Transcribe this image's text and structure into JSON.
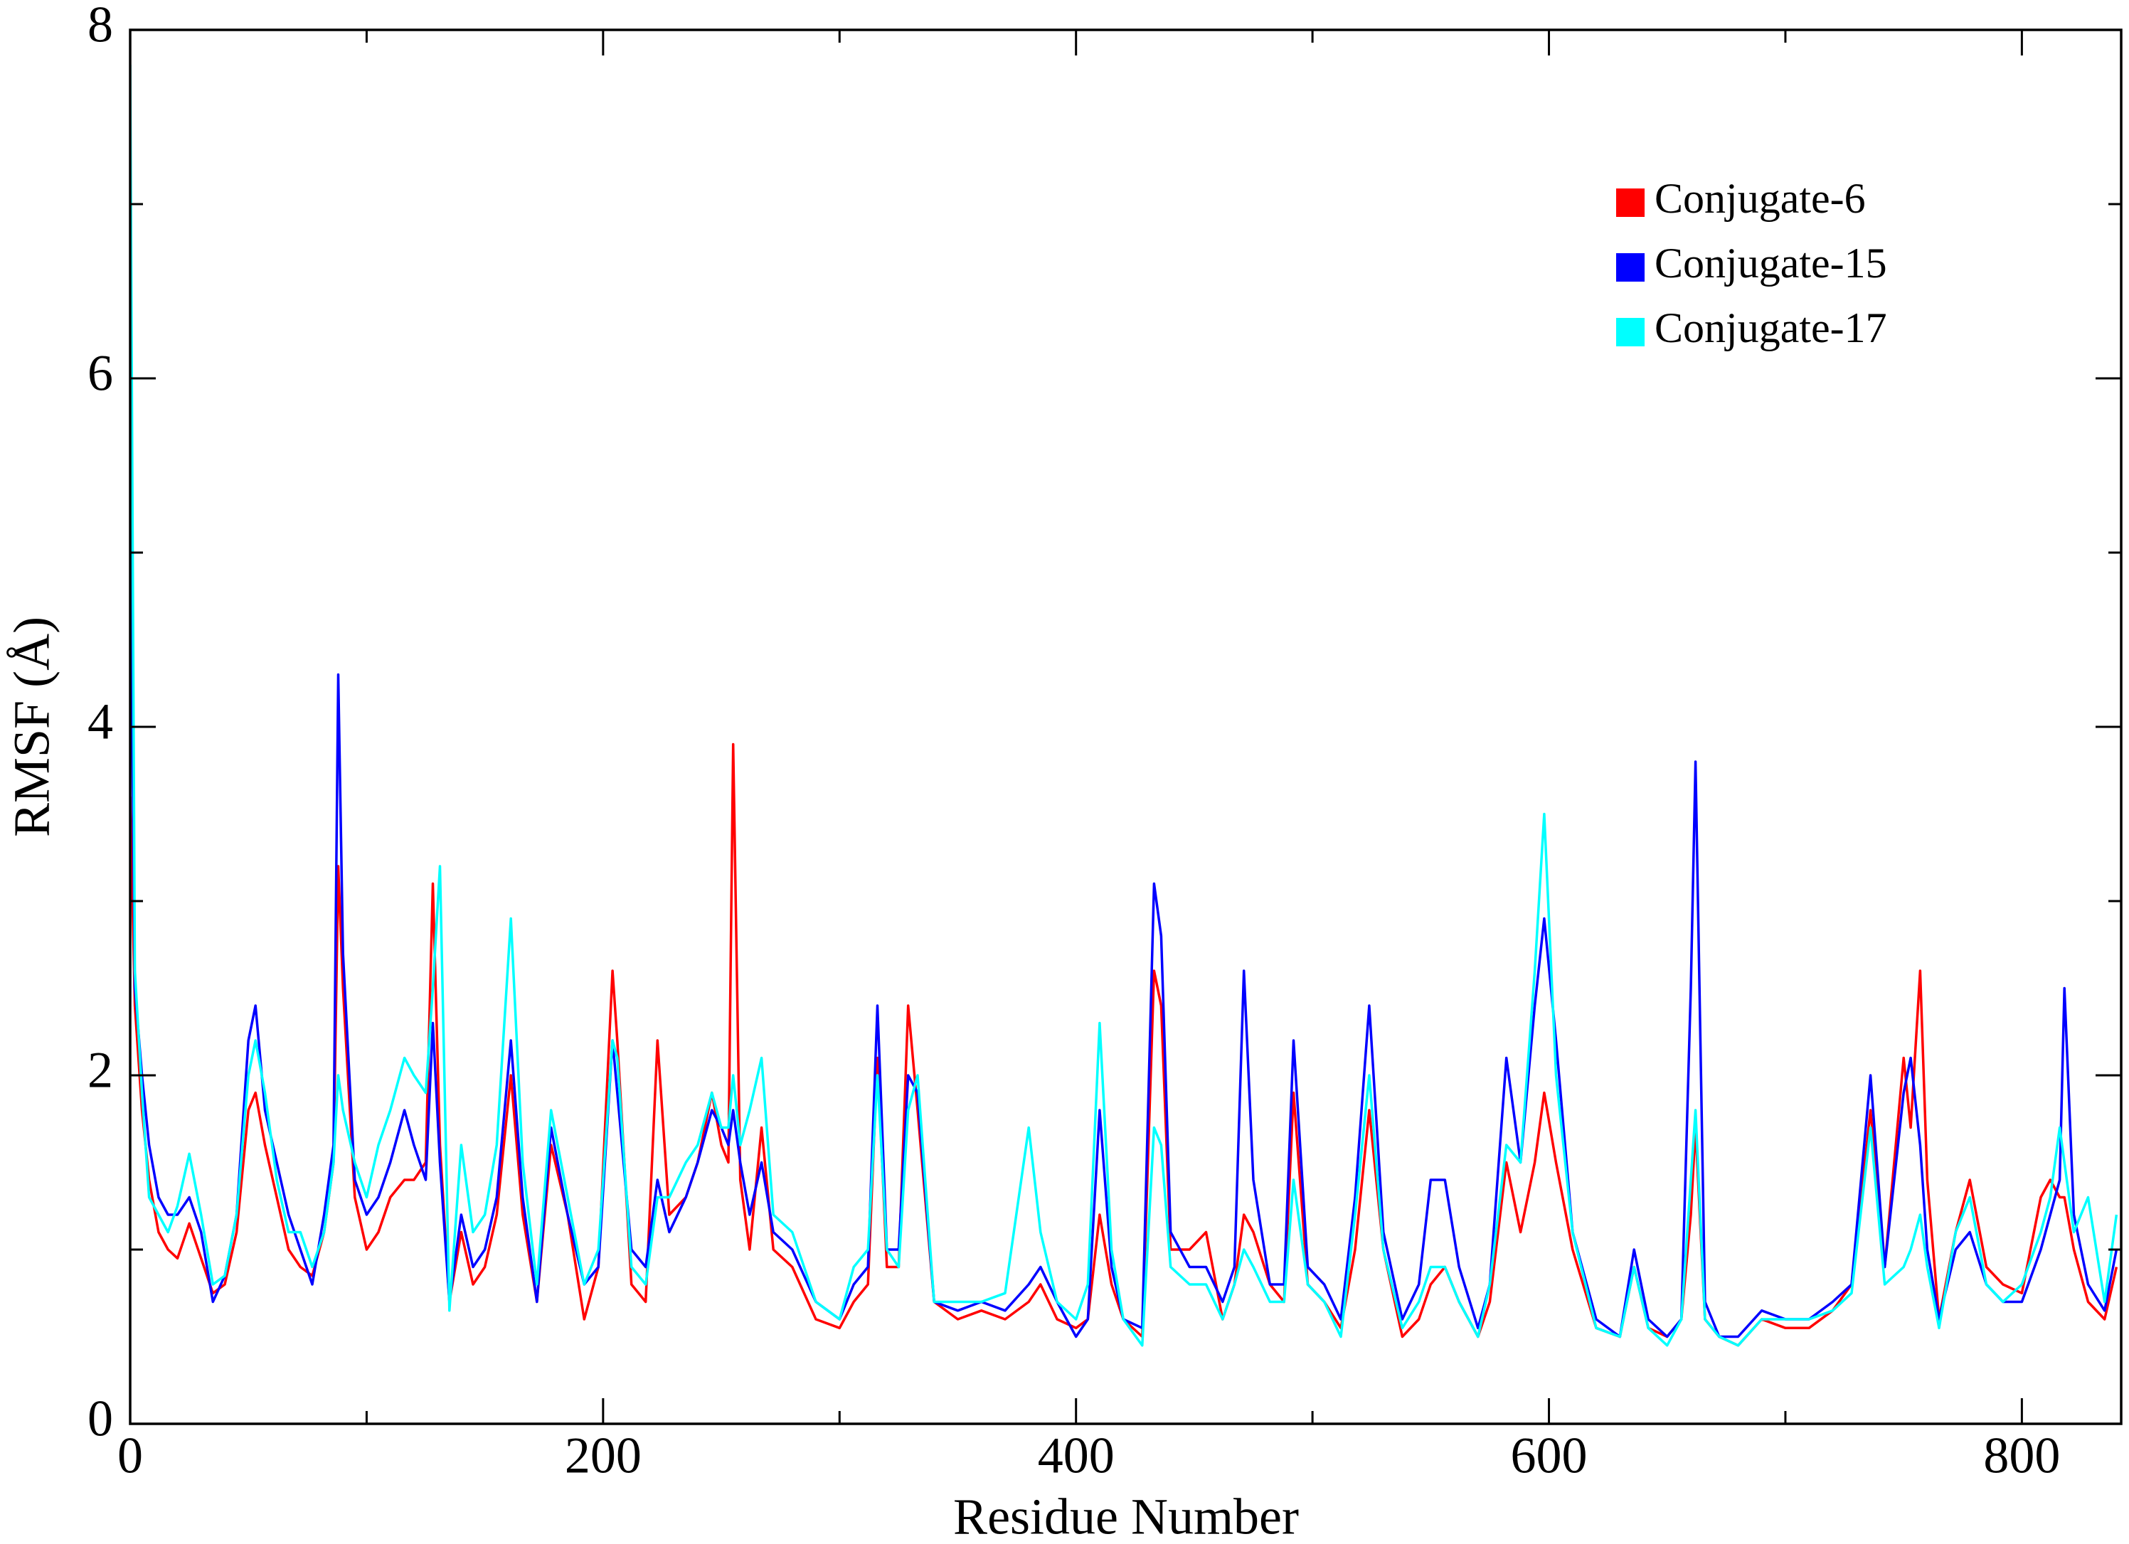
{
  "chart_data": {
    "type": "line",
    "xlabel": "Residue Number",
    "ylabel": "RMSF (Å)",
    "xlim": [
      0,
      842
    ],
    "ylim": [
      0,
      8
    ],
    "xticks": [
      0,
      200,
      400,
      600,
      800
    ],
    "xminorticks": [
      100,
      300,
      500,
      700
    ],
    "yticks": [
      0,
      2,
      4,
      6,
      8
    ],
    "yminorticks": [
      1,
      3,
      5,
      7
    ],
    "legend": "upper right",
    "x": [
      0,
      2,
      5,
      8,
      12,
      16,
      20,
      25,
      30,
      35,
      40,
      45,
      50,
      53,
      57,
      62,
      67,
      72,
      77,
      82,
      86,
      88,
      90,
      95,
      100,
      105,
      110,
      116,
      120,
      125,
      128,
      131,
      135,
      140,
      145,
      150,
      155,
      161,
      166,
      172,
      178,
      185,
      192,
      198,
      204,
      206,
      212,
      218,
      223,
      228,
      235,
      240,
      246,
      250,
      253,
      255,
      258,
      262,
      267,
      272,
      280,
      290,
      300,
      306,
      312,
      316,
      320,
      325,
      329,
      333,
      340,
      350,
      360,
      370,
      380,
      385,
      392,
      400,
      405,
      410,
      415,
      420,
      428,
      433,
      436,
      440,
      448,
      455,
      462,
      467,
      471,
      475,
      482,
      488,
      492,
      498,
      505,
      512,
      518,
      524,
      530,
      538,
      545,
      550,
      556,
      562,
      570,
      575,
      582,
      588,
      594,
      598,
      603,
      610,
      620,
      630,
      636,
      642,
      650,
      656,
      660,
      662,
      666,
      672,
      680,
      690,
      700,
      710,
      720,
      728,
      736,
      742,
      750,
      753,
      757,
      760,
      765,
      772,
      778,
      785,
      792,
      800,
      808,
      812,
      816,
      818,
      822,
      828,
      835,
      840
    ],
    "series": [
      {
        "name": "Conjugate-6",
        "color": "#ff0000",
        "values": [
          3.6,
          2.4,
          1.8,
          1.4,
          1.1,
          1.0,
          0.95,
          1.15,
          0.95,
          0.75,
          0.8,
          1.1,
          1.8,
          1.9,
          1.6,
          1.3,
          1.0,
          0.9,
          0.85,
          1.1,
          1.5,
          3.2,
          2.5,
          1.3,
          1.0,
          1.1,
          1.3,
          1.4,
          1.4,
          1.5,
          3.1,
          1.6,
          0.7,
          1.1,
          0.8,
          0.9,
          1.2,
          2.0,
          1.2,
          0.7,
          1.6,
          1.2,
          0.6,
          0.9,
          2.6,
          2.2,
          0.8,
          0.7,
          2.2,
          1.2,
          1.3,
          1.5,
          1.9,
          1.6,
          1.5,
          3.9,
          1.4,
          1.0,
          1.7,
          1.0,
          0.9,
          0.6,
          0.55,
          0.7,
          0.8,
          2.1,
          0.9,
          0.9,
          2.4,
          1.8,
          0.7,
          0.6,
          0.65,
          0.6,
          0.7,
          0.8,
          0.6,
          0.55,
          0.6,
          1.2,
          0.8,
          0.6,
          0.5,
          2.6,
          2.4,
          1.0,
          1.0,
          1.1,
          0.6,
          0.8,
          1.2,
          1.1,
          0.8,
          0.7,
          1.9,
          0.8,
          0.7,
          0.55,
          1.0,
          1.8,
          1.0,
          0.5,
          0.6,
          0.8,
          0.9,
          0.7,
          0.5,
          0.7,
          1.5,
          1.1,
          1.5,
          1.9,
          1.5,
          1.0,
          0.55,
          0.5,
          0.9,
          0.55,
          0.5,
          0.6,
          1.2,
          1.7,
          0.6,
          0.5,
          0.45,
          0.6,
          0.55,
          0.55,
          0.65,
          0.8,
          1.8,
          0.9,
          2.1,
          1.7,
          2.6,
          1.4,
          0.6,
          1.1,
          1.4,
          0.9,
          0.8,
          0.75,
          1.3,
          1.4,
          1.3,
          1.3,
          1.0,
          0.7,
          0.6,
          0.9
        ]
      },
      {
        "name": "Conjugate-15",
        "color": "#0000ff",
        "values": [
          5.2,
          2.5,
          2.0,
          1.6,
          1.3,
          1.2,
          1.2,
          1.3,
          1.1,
          0.7,
          0.85,
          1.2,
          2.2,
          2.4,
          1.8,
          1.5,
          1.2,
          1.0,
          0.8,
          1.2,
          1.6,
          4.3,
          2.7,
          1.4,
          1.2,
          1.3,
          1.5,
          1.8,
          1.6,
          1.4,
          2.3,
          1.5,
          0.7,
          1.2,
          0.9,
          1.0,
          1.3,
          2.2,
          1.3,
          0.7,
          1.7,
          1.2,
          0.8,
          0.9,
          2.2,
          1.9,
          1.0,
          0.9,
          1.4,
          1.1,
          1.3,
          1.5,
          1.8,
          1.7,
          1.6,
          1.8,
          1.5,
          1.2,
          1.5,
          1.1,
          1.0,
          0.7,
          0.6,
          0.8,
          0.9,
          2.4,
          1.0,
          1.0,
          2.0,
          1.9,
          0.7,
          0.65,
          0.7,
          0.65,
          0.8,
          0.9,
          0.7,
          0.5,
          0.6,
          1.8,
          0.9,
          0.6,
          0.55,
          3.1,
          2.8,
          1.1,
          0.9,
          0.9,
          0.7,
          0.9,
          2.6,
          1.4,
          0.8,
          0.8,
          2.2,
          0.9,
          0.8,
          0.6,
          1.3,
          2.4,
          1.1,
          0.6,
          0.8,
          1.4,
          1.4,
          0.9,
          0.55,
          0.8,
          2.1,
          1.5,
          2.4,
          2.9,
          2.2,
          1.1,
          0.6,
          0.5,
          1.0,
          0.6,
          0.5,
          0.6,
          2.5,
          3.8,
          0.7,
          0.5,
          0.5,
          0.65,
          0.6,
          0.6,
          0.7,
          0.8,
          2.0,
          0.9,
          1.9,
          2.1,
          1.6,
          1.0,
          0.6,
          1.0,
          1.1,
          0.8,
          0.7,
          0.7,
          1.0,
          1.2,
          1.4,
          2.5,
          1.2,
          0.8,
          0.65,
          1.0
        ]
      },
      {
        "name": "Conjugate-17",
        "color": "#00ffff",
        "values": [
          7.8,
          2.6,
          1.9,
          1.3,
          1.2,
          1.1,
          1.25,
          1.55,
          1.2,
          0.8,
          0.85,
          1.2,
          2.0,
          2.2,
          1.9,
          1.4,
          1.1,
          1.1,
          0.9,
          1.1,
          1.5,
          2.0,
          1.8,
          1.5,
          1.3,
          1.6,
          1.8,
          2.1,
          2.0,
          1.9,
          2.5,
          3.2,
          0.65,
          1.6,
          1.1,
          1.2,
          1.6,
          2.9,
          1.5,
          0.8,
          1.8,
          1.3,
          0.8,
          1.0,
          2.2,
          2.1,
          0.9,
          0.8,
          1.3,
          1.3,
          1.5,
          1.6,
          1.9,
          1.7,
          1.7,
          2.0,
          1.6,
          1.8,
          2.1,
          1.2,
          1.1,
          0.7,
          0.6,
          0.9,
          1.0,
          2.0,
          1.0,
          0.9,
          1.8,
          2.0,
          0.7,
          0.7,
          0.7,
          0.75,
          1.7,
          1.1,
          0.7,
          0.6,
          0.8,
          2.3,
          1.0,
          0.6,
          0.45,
          1.7,
          1.6,
          0.9,
          0.8,
          0.8,
          0.6,
          0.8,
          1.0,
          0.9,
          0.7,
          0.7,
          1.4,
          0.8,
          0.7,
          0.5,
          1.2,
          2.0,
          1.0,
          0.55,
          0.7,
          0.9,
          0.9,
          0.7,
          0.5,
          0.8,
          1.6,
          1.5,
          2.6,
          3.5,
          2.0,
          1.1,
          0.55,
          0.5,
          0.9,
          0.55,
          0.45,
          0.6,
          1.4,
          1.8,
          0.6,
          0.5,
          0.45,
          0.6,
          0.6,
          0.6,
          0.65,
          0.75,
          1.7,
          0.8,
          0.9,
          1.0,
          1.2,
          0.9,
          0.55,
          1.1,
          1.3,
          0.8,
          0.7,
          0.8,
          1.1,
          1.3,
          1.7,
          1.5,
          1.1,
          1.3,
          0.7,
          1.2
        ]
      }
    ]
  }
}
